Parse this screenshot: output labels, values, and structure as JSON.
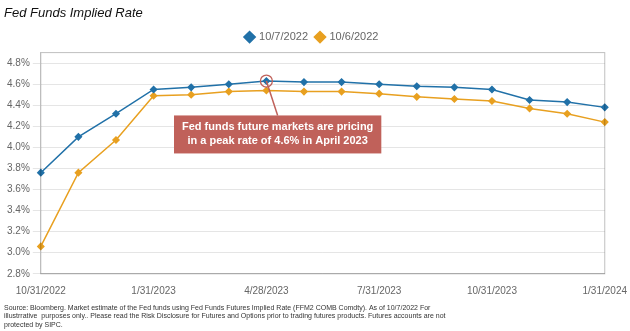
{
  "chart_data": {
    "type": "line",
    "title": "Fed Funds Implied Rate",
    "categories": [
      "10/31/2022",
      null,
      null,
      "1/31/2023",
      null,
      null,
      "4/28/2023",
      null,
      null,
      "7/31/2023",
      null,
      null,
      "10/31/2023",
      null,
      null,
      "1/31/2024"
    ],
    "series": [
      {
        "name": "10/7/2022",
        "color": "#2171a8",
        "values": [
          3.76,
          4.1,
          4.32,
          4.55,
          4.57,
          4.6,
          4.63,
          4.62,
          4.62,
          4.6,
          4.58,
          4.57,
          4.55,
          4.45,
          4.43,
          4.38
        ]
      },
      {
        "name": "10/6/2022",
        "color": "#e8a020",
        "values": [
          3.06,
          3.76,
          4.07,
          4.49,
          4.5,
          4.53,
          4.54,
          4.53,
          4.53,
          4.51,
          4.48,
          4.46,
          4.44,
          4.37,
          4.32,
          4.24
        ]
      }
    ],
    "ylim": [
      2.8,
      4.9
    ],
    "yticks": [
      {
        "value": 2.8,
        "label": "2.8%"
      },
      {
        "value": 3.0,
        "label": "3.0%"
      },
      {
        "value": 3.2,
        "label": "3.2%"
      },
      {
        "value": 3.4,
        "label": "3.4%"
      },
      {
        "value": 3.6,
        "label": "3.6%"
      },
      {
        "value": 3.8,
        "label": "3.8%"
      },
      {
        "value": 4.0,
        "label": "4.0%"
      },
      {
        "value": 4.2,
        "label": "4.2%"
      },
      {
        "value": 4.4,
        "label": "4.4%"
      },
      {
        "value": 4.6,
        "label": "4.6%"
      },
      {
        "value": 4.8,
        "label": "4.8%"
      }
    ],
    "grid": "y",
    "legend": "top",
    "marker": "diamond",
    "annotations": [
      {
        "text": "Fed funds future markets are pricing\nin a peak rate of 4.6% in April 2023",
        "color": "#c0615a"
      },
      {
        "text": "Source: Bloomberg. Market estimate of the Fed funds using Fed Funds Futures Implied Rate (FFM2 COMB Comdty). As of 10/7/2022 For\nillustrrative  purposes only.. Please read the Risk Disclosure for Futures and Options prior to trading futures products. Futures accounts are not\nprotected by SIPC."
      }
    ]
  }
}
